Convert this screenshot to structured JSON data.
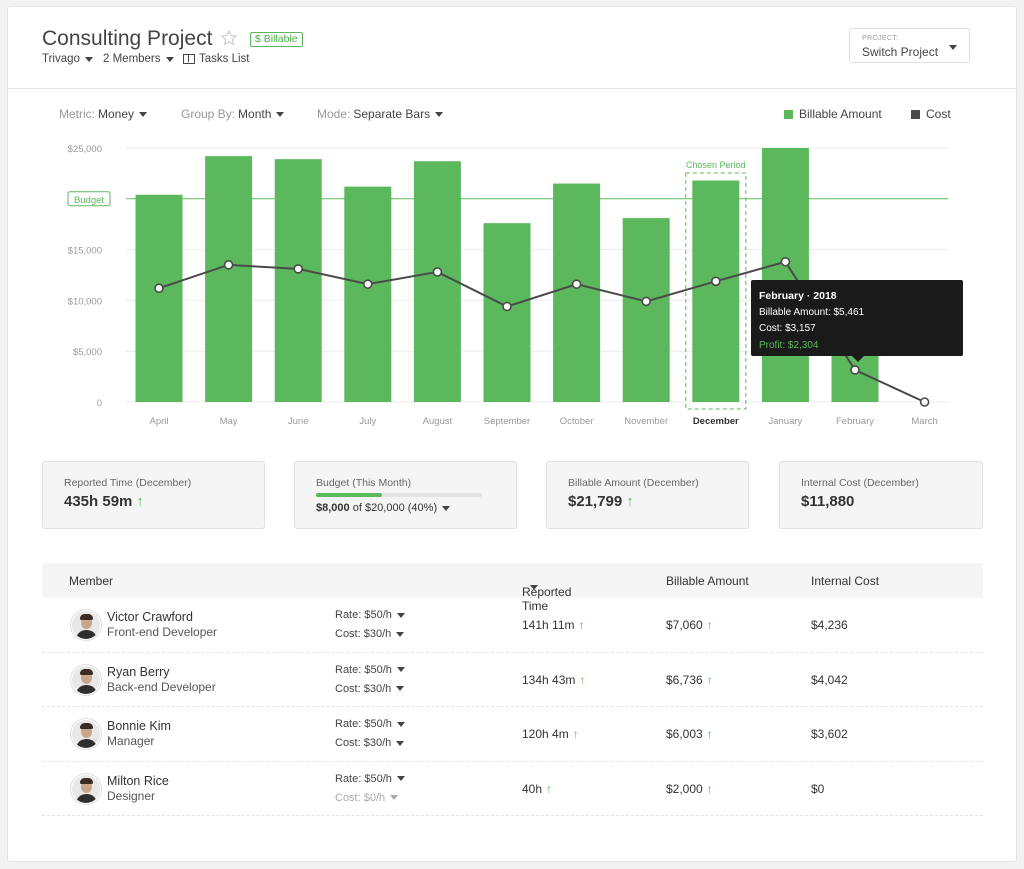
{
  "header": {
    "title": "Consulting Project",
    "billable_badge": "$ Billable",
    "client": "Trivago",
    "members": "2 Members",
    "tasks": "Tasks List",
    "switch_label": "PROJECT:",
    "switch_value": "Switch Project"
  },
  "controls": {
    "metric_label": "Metric:",
    "metric_value": "Money",
    "group_label": "Group By:",
    "group_value": "Month",
    "mode_label": "Mode:",
    "mode_value": "Separate Bars",
    "legend_billable": "Billable Amount",
    "legend_cost": "Cost"
  },
  "colors": {
    "accent": "#5cb85c",
    "bar": "#5cb85c",
    "line": "#4a4a4a",
    "tooltip_bg": "#1a1a1a"
  },
  "chart_data": {
    "type": "bar",
    "categories": [
      "April",
      "May",
      "June",
      "July",
      "August",
      "September",
      "October",
      "November",
      "December",
      "January",
      "February",
      "March"
    ],
    "selected_category": "December",
    "series": [
      {
        "name": "Billable Amount",
        "type": "bar",
        "values": [
          20400,
          24200,
          23900,
          21200,
          23700,
          17600,
          21500,
          18100,
          21799,
          25000,
          5461,
          0
        ]
      },
      {
        "name": "Cost",
        "type": "line",
        "values": [
          11200,
          13500,
          13100,
          11600,
          12800,
          9400,
          11600,
          9900,
          11880,
          13800,
          3157,
          0
        ]
      }
    ],
    "y_ticks": [
      "$25,000",
      "$15,000",
      "$10,000",
      "$5,000",
      "0"
    ],
    "ylim": [
      0,
      25000
    ],
    "budget_value": 20000,
    "budget_label": "Budget",
    "chosen_period_label": "Chosen Period",
    "grid": true,
    "legend_position": "top-right"
  },
  "tooltip": {
    "title": "February · 2018",
    "billable": "Billable Amount: $5,461",
    "cost": "Cost: $3,157",
    "profit": "Profit: $2,304"
  },
  "stats": {
    "reported_label": "Reported Time (December)",
    "reported_value": "435h 59m",
    "budget_label": "Budget (This Month)",
    "budget_progress": 0.4,
    "budget_used": "$8,000",
    "budget_rest": "of $20,000 (40%)",
    "billable_label": "Billable Amount (December)",
    "billable_value": "$21,799",
    "cost_label": "Internal Cost (December)",
    "cost_value": "$11,880"
  },
  "table": {
    "headers": {
      "member": "Member",
      "reported": "Reported Time",
      "billable": "Billable Amount",
      "cost": "Internal Cost"
    },
    "rows": [
      {
        "name": "Victor Crawford",
        "role": "Front-end Developer",
        "rate": "Rate: $50/h",
        "cost_rate": "Cost: $30/h",
        "reported": "141h 11m",
        "billable": "$7,060",
        "cost": "$4,236"
      },
      {
        "name": "Ryan Berry",
        "role": "Back-end Developer",
        "rate": "Rate: $50/h",
        "cost_rate": "Cost: $30/h",
        "reported": "134h 43m",
        "billable": "$6,736",
        "cost": "$4,042"
      },
      {
        "name": "Bonnie Kim",
        "role": "Manager",
        "rate": "Rate: $50/h",
        "cost_rate": "Cost: $30/h",
        "reported": "120h 4m",
        "billable": "$6,003",
        "cost": "$3,602"
      },
      {
        "name": "Milton Rice",
        "role": "Designer",
        "rate": "Rate: $50/h",
        "cost_rate": "Cost: $0/h",
        "reported": "40h",
        "billable": "$2,000",
        "cost": "$0"
      }
    ]
  }
}
